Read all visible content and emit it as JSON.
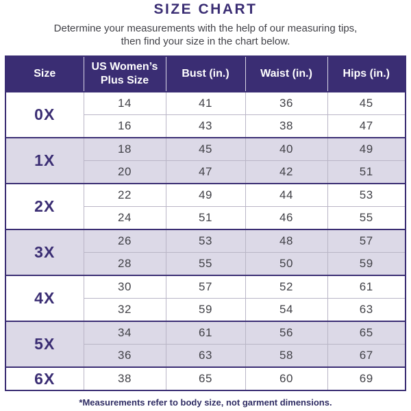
{
  "page": {
    "title": "SIZE CHART",
    "subtitle_line1": "Determine your measurements with the help of our measuring tips,",
    "subtitle_line2": "then find your size in the chart below.",
    "footnote": "*Measurements refer to body size, not garment dimensions."
  },
  "colors": {
    "primary_purple": "#3a2d73",
    "shaded_row_lavender": "#dcd9e7",
    "data_text": "#404046",
    "light_divider": "#b9b5c6",
    "header_text": "#ffffff"
  },
  "chart_data": {
    "type": "table",
    "title": "SIZE CHART",
    "columns": [
      "Size",
      "US Women’s Plus Size",
      "Bust (in.)",
      "Waist (in.)",
      "Hips (in.)"
    ],
    "column_keys": [
      "size",
      "us_womens_plus_size",
      "bust_in",
      "waist_in",
      "hips_in"
    ],
    "groups": [
      {
        "size": "0X",
        "shaded": false,
        "rows": [
          [
            14,
            41,
            36,
            45
          ],
          [
            16,
            43,
            38,
            47
          ]
        ]
      },
      {
        "size": "1X",
        "shaded": true,
        "rows": [
          [
            18,
            45,
            40,
            49
          ],
          [
            20,
            47,
            42,
            51
          ]
        ]
      },
      {
        "size": "2X",
        "shaded": false,
        "rows": [
          [
            22,
            49,
            44,
            53
          ],
          [
            24,
            51,
            46,
            55
          ]
        ]
      },
      {
        "size": "3X",
        "shaded": true,
        "rows": [
          [
            26,
            53,
            48,
            57
          ],
          [
            28,
            55,
            50,
            59
          ]
        ]
      },
      {
        "size": "4X",
        "shaded": false,
        "rows": [
          [
            30,
            57,
            52,
            61
          ],
          [
            32,
            59,
            54,
            63
          ]
        ]
      },
      {
        "size": "5X",
        "shaded": true,
        "rows": [
          [
            34,
            61,
            56,
            65
          ],
          [
            36,
            63,
            58,
            67
          ]
        ]
      },
      {
        "size": "6X",
        "shaded": false,
        "rows": [
          [
            38,
            65,
            60,
            69
          ]
        ]
      }
    ]
  }
}
